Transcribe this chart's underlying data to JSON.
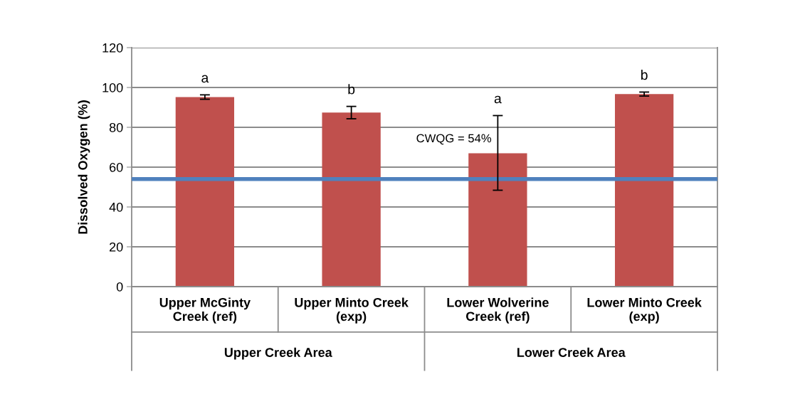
{
  "chart_data": {
    "type": "bar",
    "ylabel": "Dissolved Oxygen (%)",
    "categories": [
      "Upper McGinty\nCreek (ref)",
      "Upper Minto Creek\n(exp)",
      "Lower Wolverine\nCreek (ref)",
      "Lower Minto Creek\n(exp)"
    ],
    "values": [
      95.2,
      87.4,
      67.0,
      96.7
    ],
    "errors": [
      1.1,
      3.1,
      [
        48.4,
        85.9
      ],
      1.0
    ],
    "color": "#c0504d",
    "ylim": [
      0,
      120
    ],
    "yticks": [
      0,
      20,
      40,
      60,
      80,
      100,
      120
    ],
    "grid": "y",
    "ref_lines": [
      {
        "axis": "y",
        "value": 54,
        "label": "CWQG = 54%",
        "color": "#4f81bd"
      }
    ],
    "annotations": [
      "a",
      "b",
      "a",
      "b",
      "Upper Creek Area",
      "Lower Creek Area"
    ]
  }
}
